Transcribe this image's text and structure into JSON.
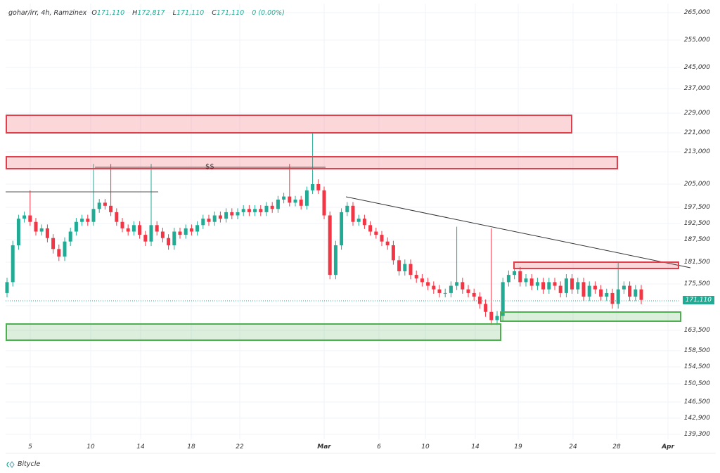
{
  "header": {
    "symbol": "gohar/irr, 4h, Ramzinex",
    "o_label": "O",
    "o": "171,110",
    "h_label": "H",
    "h": "172,817",
    "l_label": "L",
    "l": "171,110",
    "c_label": "C",
    "c": "171,110",
    "change": "0 (0.00%)"
  },
  "price_tag": "171,110",
  "annotation": "$$",
  "logo": "Bitycle",
  "colors": {
    "up": "#22ab94",
    "down": "#f23645",
    "grid": "#f0f3fa"
  },
  "chart_data": {
    "type": "candlestick",
    "title": "gohar/irr, 4h, Ramzinex",
    "y_ticks": [
      "265,000",
      "255,000",
      "245,000",
      "237,000",
      "229,000",
      "221,000",
      "213,000",
      "205,000",
      "197,500",
      "192,500",
      "187,500",
      "181,500",
      "175,500",
      "169,500",
      "163,500",
      "158,500",
      "154,500",
      "150,500",
      "146,500",
      "142,900",
      "139,300"
    ],
    "y_tick_values": [
      265000,
      255000,
      245000,
      237000,
      229000,
      221000,
      213000,
      205000,
      197500,
      192500,
      187500,
      181500,
      175500,
      169500,
      163500,
      158500,
      154500,
      150500,
      146500,
      142900,
      139300
    ],
    "x_ticks": [
      "5",
      "10",
      "14",
      "18",
      "22",
      "Mar",
      "6",
      "10",
      "14",
      "19",
      "24",
      "28",
      "Apr"
    ],
    "closes": [
      176000,
      186000,
      194000,
      195000,
      193000,
      190000,
      191000,
      188000,
      185000,
      183000,
      187000,
      190000,
      193000,
      194000,
      193000,
      197000,
      199000,
      198000,
      196000,
      193000,
      191000,
      190000,
      192000,
      189000,
      187000,
      192000,
      190000,
      188000,
      186000,
      190000,
      189000,
      191000,
      190000,
      192000,
      194000,
      193000,
      195000,
      194000,
      196000,
      195000,
      196000,
      197000,
      196000,
      197000,
      196000,
      198000,
      197000,
      200000,
      201000,
      199000,
      200000,
      198000,
      203000,
      205000,
      203000,
      195000,
      178000,
      186000,
      196000,
      198000,
      193000,
      194000,
      192000,
      190000,
      189000,
      187000,
      186000,
      182000,
      179000,
      181000,
      178000,
      177000,
      176000,
      175000,
      174000,
      173000,
      173000,
      175000,
      176000,
      174000,
      173000,
      172000,
      170000,
      168000,
      166000,
      167000,
      176000,
      178000,
      179000,
      176000,
      177000,
      175000,
      176000,
      174000,
      176000,
      175000,
      173000,
      177000,
      174000,
      176000,
      172000,
      175000,
      174000,
      172000,
      173000,
      170000,
      174000,
      175000,
      172000,
      174000,
      171110
    ],
    "high_spikes": [
      {
        "i": 15,
        "high": 210000
      },
      {
        "i": 18,
        "high": 210000
      },
      {
        "i": 25,
        "high": 210000
      },
      {
        "i": 49,
        "high": 210000
      },
      {
        "i": 53,
        "high": 221000
      },
      {
        "i": 4,
        "high": 203000
      },
      {
        "i": 78,
        "high": 191500
      },
      {
        "i": 84,
        "high": 191000
      },
      {
        "i": 106,
        "high": 181500
      }
    ],
    "last_price": 171110
  }
}
